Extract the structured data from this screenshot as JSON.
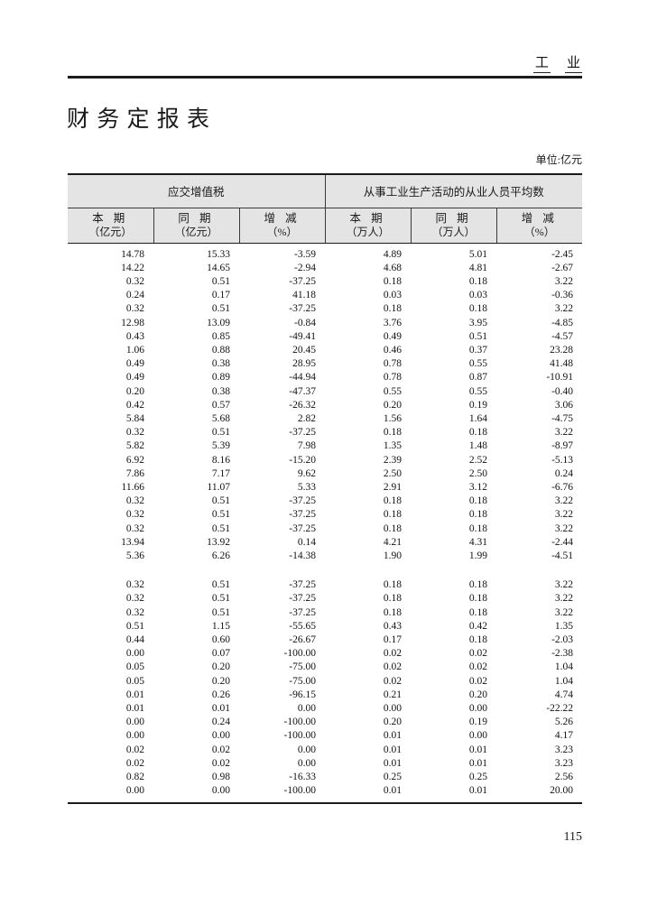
{
  "page_header": {
    "chars": [
      "工",
      "业"
    ]
  },
  "title": "财 务 定 报 表",
  "unit_note": "单位:亿元",
  "page_number": "115",
  "table": {
    "groups": [
      {
        "label": "应交增值税"
      },
      {
        "label": "从事工业生产活动的从业人员平均数"
      }
    ],
    "columns": [
      {
        "label": "本 期",
        "unit": "（亿元）"
      },
      {
        "label": "同 期",
        "unit": "（亿元）"
      },
      {
        "label": "增 减",
        "unit": "（%）"
      },
      {
        "label": "本 期",
        "unit": "（万人）"
      },
      {
        "label": "同 期",
        "unit": "（万人）"
      },
      {
        "label": "增 减",
        "unit": "（%）"
      }
    ],
    "sections": [
      {
        "rows": [
          [
            "14.78",
            "15.33",
            "-3.59",
            "4.89",
            "5.01",
            "-2.45"
          ],
          [
            "14.22",
            "14.65",
            "-2.94",
            "4.68",
            "4.81",
            "-2.67"
          ],
          [
            "0.32",
            "0.51",
            "-37.25",
            "0.18",
            "0.18",
            "3.22"
          ],
          [
            "0.24",
            "0.17",
            "41.18",
            "0.03",
            "0.03",
            "-0.36"
          ],
          [
            "0.32",
            "0.51",
            "-37.25",
            "0.18",
            "0.18",
            "3.22"
          ],
          [
            "12.98",
            "13.09",
            "-0.84",
            "3.76",
            "3.95",
            "-4.85"
          ],
          [
            "0.43",
            "0.85",
            "-49.41",
            "0.49",
            "0.51",
            "-4.57"
          ],
          [
            "1.06",
            "0.88",
            "20.45",
            "0.46",
            "0.37",
            "23.28"
          ],
          [
            "0.49",
            "0.38",
            "28.95",
            "0.78",
            "0.55",
            "41.48"
          ],
          [
            "0.49",
            "0.89",
            "-44.94",
            "0.78",
            "0.87",
            "-10.91"
          ],
          [
            "0.20",
            "0.38",
            "-47.37",
            "0.55",
            "0.55",
            "-0.40"
          ],
          [
            "0.42",
            "0.57",
            "-26.32",
            "0.20",
            "0.19",
            "3.06"
          ],
          [
            "5.84",
            "5.68",
            "2.82",
            "1.56",
            "1.64",
            "-4.75"
          ],
          [
            "0.32",
            "0.51",
            "-37.25",
            "0.18",
            "0.18",
            "3.22"
          ],
          [
            "5.82",
            "5.39",
            "7.98",
            "1.35",
            "1.48",
            "-8.97"
          ],
          [
            "6.92",
            "8.16",
            "-15.20",
            "2.39",
            "2.52",
            "-5.13"
          ],
          [
            "7.86",
            "7.17",
            "9.62",
            "2.50",
            "2.50",
            "0.24"
          ],
          [
            "11.66",
            "11.07",
            "5.33",
            "2.91",
            "3.12",
            "-6.76"
          ],
          [
            "0.32",
            "0.51",
            "-37.25",
            "0.18",
            "0.18",
            "3.22"
          ],
          [
            "0.32",
            "0.51",
            "-37.25",
            "0.18",
            "0.18",
            "3.22"
          ],
          [
            "0.32",
            "0.51",
            "-37.25",
            "0.18",
            "0.18",
            "3.22"
          ],
          [
            "13.94",
            "13.92",
            "0.14",
            "4.21",
            "4.31",
            "-2.44"
          ],
          [
            "5.36",
            "6.26",
            "-14.38",
            "1.90",
            "1.99",
            "-4.51"
          ]
        ]
      },
      {
        "rows": [
          [
            "0.32",
            "0.51",
            "-37.25",
            "0.18",
            "0.18",
            "3.22"
          ],
          [
            "0.32",
            "0.51",
            "-37.25",
            "0.18",
            "0.18",
            "3.22"
          ],
          [
            "0.32",
            "0.51",
            "-37.25",
            "0.18",
            "0.18",
            "3.22"
          ],
          [
            "0.51",
            "1.15",
            "-55.65",
            "0.43",
            "0.42",
            "1.35"
          ],
          [
            "0.44",
            "0.60",
            "-26.67",
            "0.17",
            "0.18",
            "-2.03"
          ],
          [
            "0.00",
            "0.07",
            "-100.00",
            "0.02",
            "0.02",
            "-2.38"
          ],
          [
            "0.05",
            "0.20",
            "-75.00",
            "0.02",
            "0.02",
            "1.04"
          ],
          [
            "0.05",
            "0.20",
            "-75.00",
            "0.02",
            "0.02",
            "1.04"
          ],
          [
            "0.01",
            "0.26",
            "-96.15",
            "0.21",
            "0.20",
            "4.74"
          ],
          [
            "0.01",
            "0.01",
            "0.00",
            "0.00",
            "0.00",
            "-22.22"
          ],
          [
            "0.00",
            "0.24",
            "-100.00",
            "0.20",
            "0.19",
            "5.26"
          ],
          [
            "0.00",
            "0.00",
            "-100.00",
            "0.01",
            "0.00",
            "4.17"
          ],
          [
            "0.02",
            "0.02",
            "0.00",
            "0.01",
            "0.01",
            "3.23"
          ],
          [
            "0.02",
            "0.02",
            "0.00",
            "0.01",
            "0.01",
            "3.23"
          ],
          [
            "0.82",
            "0.98",
            "-16.33",
            "0.25",
            "0.25",
            "2.56"
          ],
          [
            "0.00",
            "0.00",
            "-100.00",
            "0.01",
            "0.01",
            "20.00"
          ]
        ]
      }
    ]
  }
}
